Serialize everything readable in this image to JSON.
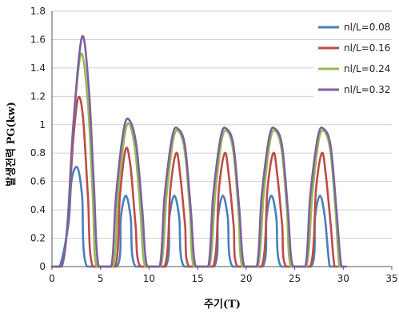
{
  "chart_data": {
    "type": "line",
    "xlabel": "주기(T)",
    "ylabel": "발생전력 PG(kw)",
    "xlim": [
      0,
      35
    ],
    "ylim": [
      0,
      1.8
    ],
    "x_ticks": [
      "0",
      "5",
      "10",
      "15",
      "20",
      "25",
      "30",
      "35"
    ],
    "y_ticks": [
      "0",
      "0.2",
      "0.4",
      "0.6",
      "0.8",
      "1",
      "1.2",
      "1.4",
      "1.6",
      "1.8"
    ],
    "grid": true,
    "legend_position": "right",
    "series": [
      {
        "name": "nl/L=0.08",
        "color": "#4a7ebb",
        "x": [
          0.8,
          1.7,
          2.0,
          2.6,
          3.1,
          3.6,
          6.7,
          7.1,
          7.6,
          8.1,
          8.6,
          11.7,
          12.1,
          12.6,
          13.1,
          13.6,
          16.7,
          17.1,
          17.6,
          18.1,
          18.6,
          21.7,
          22.1,
          22.6,
          23.1,
          23.6,
          26.7,
          27.1,
          27.6,
          28.1,
          28.6
        ],
        "y": [
          0,
          0.3,
          0.6,
          0.7,
          0.5,
          0,
          0,
          0.35,
          0.5,
          0.35,
          0,
          0,
          0.35,
          0.5,
          0.35,
          0,
          0,
          0.35,
          0.5,
          0.35,
          0,
          0,
          0.35,
          0.5,
          0.35,
          0,
          0,
          0.35,
          0.5,
          0.35,
          0
        ]
      },
      {
        "name": "nl/L=0.16",
        "color": "#be4b48",
        "x": [
          1.0,
          1.6,
          2.2,
          2.7,
          3.2,
          3.7,
          4.2,
          6.5,
          7.0,
          7.6,
          8.1,
          8.6,
          9.1,
          11.6,
          12.2,
          12.8,
          13.2,
          13.7,
          14.1,
          16.6,
          17.2,
          17.8,
          18.2,
          18.7,
          19.1,
          21.6,
          22.2,
          22.8,
          23.2,
          23.7,
          24.1,
          26.6,
          27.2,
          27.8,
          28.2,
          28.7,
          29.1
        ],
        "y": [
          0,
          0.3,
          0.9,
          1.19,
          1.05,
          0.5,
          0,
          0,
          0.5,
          0.83,
          0.7,
          0.3,
          0,
          0,
          0.55,
          0.8,
          0.65,
          0.3,
          0,
          0,
          0.55,
          0.8,
          0.65,
          0.3,
          0,
          0,
          0.55,
          0.8,
          0.65,
          0.3,
          0,
          0,
          0.55,
          0.8,
          0.65,
          0.3,
          0
        ]
      },
      {
        "name": "nl/L=0.24",
        "color": "#98b954",
        "x": [
          1.0,
          1.6,
          2.2,
          3.0,
          3.7,
          4.2,
          4.6,
          6.3,
          6.8,
          7.5,
          8.0,
          8.6,
          9.1,
          9.6,
          11.2,
          11.8,
          12.5,
          13.1,
          13.7,
          14.2,
          14.6,
          16.2,
          16.8,
          17.5,
          18.1,
          18.7,
          19.2,
          19.6,
          21.2,
          21.8,
          22.5,
          23.1,
          23.7,
          24.2,
          24.6,
          26.2,
          26.8,
          27.5,
          28.1,
          28.7,
          29.2,
          29.6
        ],
        "y": [
          0,
          0.3,
          1.0,
          1.5,
          1.15,
          0.5,
          0,
          0,
          0.5,
          0.93,
          1.0,
          0.8,
          0.4,
          0,
          0,
          0.5,
          0.9,
          0.95,
          0.8,
          0.4,
          0,
          0,
          0.5,
          0.9,
          0.95,
          0.8,
          0.4,
          0,
          0,
          0.5,
          0.9,
          0.95,
          0.8,
          0.4,
          0,
          0,
          0.5,
          0.9,
          0.95,
          0.8,
          0.4,
          0
        ]
      },
      {
        "name": "nl/L=0.32",
        "color": "#7d60a0",
        "x": [
          1.0,
          1.6,
          2.2,
          3.1,
          3.8,
          4.3,
          4.8,
          6.1,
          6.6,
          7.4,
          8.0,
          8.7,
          9.3,
          9.8,
          11.1,
          11.6,
          12.4,
          13.0,
          13.7,
          14.3,
          14.8,
          16.1,
          16.6,
          17.4,
          18.0,
          18.7,
          19.3,
          19.8,
          21.1,
          21.6,
          22.4,
          23.0,
          23.7,
          24.3,
          24.8,
          26.1,
          26.6,
          27.4,
          28.0,
          28.7,
          29.3,
          29.8
        ],
        "y": [
          0,
          0.3,
          1.0,
          1.62,
          1.25,
          0.6,
          0,
          0,
          0.5,
          0.97,
          1.03,
          0.85,
          0.4,
          0,
          0,
          0.5,
          0.92,
          0.97,
          0.85,
          0.4,
          0,
          0,
          0.5,
          0.92,
          0.97,
          0.85,
          0.4,
          0,
          0,
          0.5,
          0.92,
          0.97,
          0.85,
          0.4,
          0,
          0,
          0.5,
          0.92,
          0.97,
          0.85,
          0.4,
          0
        ]
      }
    ]
  }
}
